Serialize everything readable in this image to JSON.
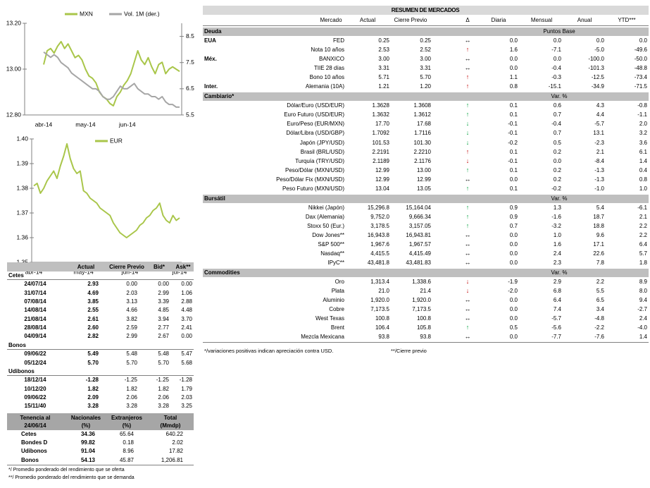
{
  "chart_data": [
    {
      "type": "line",
      "categories": [
        "abr-14",
        null,
        null,
        null,
        null,
        null,
        null,
        null,
        null,
        null,
        null,
        null,
        "may-14",
        null,
        null,
        null,
        null,
        null,
        null,
        null,
        null,
        null,
        null,
        null,
        "jun-14",
        null,
        null,
        null,
        null,
        null,
        null,
        null,
        null,
        null,
        null,
        null,
        null,
        null,
        null,
        null
      ],
      "series": [
        {
          "name": "MXN",
          "color": "#a9c64a",
          "values": [
            13.02,
            13.08,
            13.09,
            13.07,
            13.1,
            13.12,
            13.09,
            13.11,
            13.08,
            13.05,
            13.06,
            13.04,
            13.0,
            12.97,
            12.96,
            12.94,
            12.9,
            12.88,
            12.87,
            12.85,
            12.84,
            12.88,
            12.9,
            12.93,
            12.95,
            12.98,
            13.03,
            13.08,
            13.04,
            13.02,
            13.05,
            13.01,
            12.98,
            13.02,
            13.03,
            12.98,
            13.0,
            13.01,
            13.0,
            12.99
          ]
        },
        {
          "name": "Vol. 1M (der.)",
          "color": "#a6a6a6",
          "axis": "y2",
          "values": [
            7.9,
            7.8,
            7.7,
            7.8,
            7.7,
            7.5,
            7.4,
            7.3,
            7.1,
            7.0,
            6.9,
            6.8,
            6.7,
            6.6,
            6.5,
            6.5,
            6.4,
            6.2,
            6.1,
            6.1,
            6.2,
            6.4,
            6.6,
            6.5,
            6.5,
            6.6,
            6.7,
            6.5,
            6.4,
            6.3,
            6.3,
            6.2,
            6.2,
            6.1,
            6.2,
            6.0,
            5.9,
            5.9,
            5.8,
            5.8
          ]
        }
      ],
      "ylim": [
        12.8,
        13.2
      ],
      "yticks": [
        {
          "value": 12.8,
          "label": "12.80"
        },
        {
          "value": 13,
          "label": "13.00"
        },
        {
          "value": 13.2,
          "label": "13.20"
        }
      ],
      "y2lim": [
        5.5,
        9.0
      ],
      "y2ticks": [
        5.5,
        6.5,
        7.5,
        8.5
      ],
      "legend": "top"
    },
    {
      "type": "line",
      "categories": [
        "abr-14",
        null,
        null,
        null,
        null,
        null,
        null,
        null,
        null,
        null,
        null,
        null,
        null,
        null,
        null,
        "may-14",
        null,
        null,
        null,
        null,
        null,
        null,
        null,
        null,
        null,
        null,
        null,
        null,
        null,
        "jun-14",
        null,
        null,
        null,
        null,
        null,
        null,
        null,
        null,
        null,
        null,
        null,
        null,
        null,
        null,
        "jul-14"
      ],
      "series": [
        {
          "name": "EUR",
          "color": "#a9c64a",
          "values": [
            1.381,
            1.382,
            1.378,
            1.38,
            1.383,
            1.385,
            1.387,
            1.384,
            1.389,
            1.393,
            1.398,
            1.392,
            1.388,
            1.386,
            1.387,
            1.379,
            1.378,
            1.376,
            1.375,
            1.374,
            1.372,
            1.371,
            1.37,
            1.369,
            1.366,
            1.364,
            1.362,
            1.361,
            1.36,
            1.361,
            1.362,
            1.363,
            1.365,
            1.366,
            1.368,
            1.369,
            1.371,
            1.372,
            1.374,
            1.369,
            1.367,
            1.366,
            1.369,
            1.367,
            1.368
          ]
        }
      ],
      "ylim": [
        1.35,
        1.4
      ],
      "yticks": [
        1.35,
        1.36,
        1.37,
        1.38,
        1.39,
        {
          "value": 1.4,
          "label": "1.40"
        }
      ],
      "legend": "top"
    }
  ],
  "rates": {
    "columns": [
      "Actual",
      "Cierre Previo",
      "Bid*",
      "Ask**"
    ],
    "sections": [
      {
        "name": "Cetes",
        "rows": [
          [
            "24/07/14",
            "2.93",
            "0.00",
            "0.00",
            "0.00"
          ],
          [
            "31/07/14",
            "4.69",
            "2.03",
            "2.99",
            "1.06"
          ],
          [
            "07/08/14",
            "3.85",
            "3.13",
            "3.39",
            "2.88"
          ],
          [
            "14/08/14",
            "2.55",
            "4.66",
            "4.85",
            "4.48"
          ],
          [
            "21/08/14",
            "2.61",
            "3.82",
            "3.94",
            "3.70"
          ],
          [
            "28/08/14",
            "2.60",
            "2.59",
            "2.77",
            "2.41"
          ],
          [
            "04/09/14",
            "2.82",
            "2.99",
            "2.67",
            "0.00"
          ]
        ]
      },
      {
        "name": "Bonos",
        "rows": [
          [
            "09/06/22",
            "5.49",
            "5.48",
            "5.48",
            "5.47"
          ],
          [
            "05/12/24",
            "5.70",
            "5.70",
            "5.70",
            "5.68"
          ]
        ]
      },
      {
        "name": "Udibonos",
        "rows": [
          [
            "18/12/14",
            "-1.28",
            "-1.25",
            "-1.25",
            "-1.28"
          ],
          [
            "10/12/20",
            "1.82",
            "1.82",
            "1.82",
            "1.79"
          ],
          [
            "09/06/22",
            "2.09",
            "2.06",
            "2.06",
            "2.03"
          ],
          [
            "15/11/40",
            "3.28",
            "3.28",
            "3.28",
            "3.25"
          ]
        ]
      }
    ],
    "holdings": {
      "columns": [
        [
          "Tenencia al",
          "24/06/14"
        ],
        [
          "Nacionales",
          "(%)"
        ],
        [
          "Extranjeros",
          "(%)"
        ],
        [
          "Total",
          "(Mmdp)"
        ]
      ],
      "rows": [
        [
          "Cetes",
          "34.36",
          "65.64",
          "640.22"
        ],
        [
          "Bondes D",
          "99.82",
          "0.18",
          "2.02"
        ],
        [
          "Udibonos",
          "91.04",
          "8.96",
          "17.82"
        ],
        [
          "Bonos",
          "54.13",
          "45.87",
          "1,206.81"
        ]
      ]
    },
    "notes": [
      "*/ Promedio ponderado del rendimiento que se oferta",
      "**/ Promedio ponderado del rendimiento que se demanda"
    ]
  },
  "summary": {
    "title": "RESUMEN DE MERCADOS",
    "columns": [
      "Mercado",
      "Actual",
      "Cierre Previo",
      "Δ",
      "Diaria",
      "Mensual",
      "Anual",
      "YTD***"
    ],
    "sections": [
      {
        "name": "Deuda",
        "unit": "Puntos Base",
        "rows": [
          {
            "group": "EUA",
            "name": "FED",
            "values": [
              "0.25",
              "0.25"
            ],
            "arrow": "↔",
            "arrow_color": "#000000",
            "changes": [
              "0.0",
              "0.0",
              "0.0",
              "0.0"
            ]
          },
          {
            "name": "Nota 10 años",
            "values": [
              "2.53",
              "2.52"
            ],
            "arrow": "↑",
            "arrow_color": "#c00000",
            "changes": [
              "1.6",
              "-7.1",
              "-5.0",
              "-49.6"
            ]
          },
          {
            "group": "Méx.",
            "name": "BANXICO",
            "values": [
              "3.00",
              "3.00"
            ],
            "arrow": "↔",
            "arrow_color": "#000000",
            "changes": [
              "0.0",
              "0.0",
              "-100.0",
              "-50.0"
            ]
          },
          {
            "name": "TIIE 28 días",
            "values": [
              "3.31",
              "3.31"
            ],
            "arrow": "↔",
            "arrow_color": "#000000",
            "changes": [
              "0.0",
              "-0.4",
              "-101.3",
              "-48.8"
            ]
          },
          {
            "name": "Bono 10 años",
            "values": [
              "5.71",
              "5.70"
            ],
            "arrow": "↑",
            "arrow_color": "#c00000",
            "changes": [
              "1.1",
              "-0.3",
              "-12.5",
              "-73.4"
            ]
          },
          {
            "group": "Inter.",
            "name": "Alemania (10A)",
            "values": [
              "1.21",
              "1.20"
            ],
            "arrow": "↑",
            "arrow_color": "#c00000",
            "changes": [
              "0.8",
              "-15.1",
              "-34.9",
              "-71.5"
            ]
          }
        ]
      },
      {
        "name": "Cambiario*",
        "unit": "Var. %",
        "rows": [
          {
            "name": "Dólar/Euro (USD/EUR)",
            "values": [
              "1.3628",
              "1.3608"
            ],
            "arrow": "↑",
            "arrow_color": "#00a03c",
            "changes": [
              "0.1",
              "0.6",
              "4.3",
              "-0.8"
            ]
          },
          {
            "name": "Euro Futuro (USD/EUR)",
            "values": [
              "1.3632",
              "1.3612"
            ],
            "arrow": "↑",
            "arrow_color": "#00a03c",
            "changes": [
              "0.1",
              "0.7",
              "4.4",
              "-1.1"
            ]
          },
          {
            "name": "Euro/Peso (EUR/MXN)",
            "values": [
              "17.70",
              "17.68"
            ],
            "arrow": "↓",
            "arrow_color": "#00a03c",
            "changes": [
              "-0.1",
              "-0.4",
              "-5.7",
              "2.0"
            ]
          },
          {
            "name": "Dólar/Libra (USD/GBP)",
            "values": [
              "1.7092",
              "1.7116"
            ],
            "arrow": "↓",
            "arrow_color": "#00a03c",
            "changes": [
              "-0.1",
              "0.7",
              "13.1",
              "3.2"
            ]
          },
          {
            "name": "Japón (JPY/USD)",
            "values": [
              "101.53",
              "101.30"
            ],
            "arrow": "↓",
            "arrow_color": "#00a03c",
            "changes": [
              "-0.2",
              "0.5",
              "-2.3",
              "3.6"
            ]
          },
          {
            "name": "Brasil (BRL/USD)",
            "values": [
              "2.2191",
              "2.2210"
            ],
            "arrow": "↑",
            "arrow_color": "#c00000",
            "changes": [
              "0.1",
              "0.2",
              "2.1",
              "6.1"
            ]
          },
          {
            "name": "Turquía (TRY/USD)",
            "values": [
              "2.1189",
              "2.1176"
            ],
            "arrow": "↓",
            "arrow_color": "#c00000",
            "changes": [
              "-0.1",
              "0.0",
              "-8.4",
              "1.4"
            ]
          },
          {
            "name": "Peso/Dólar (MXN/USD)",
            "values": [
              "12.99",
              "13.00"
            ],
            "arrow": "↑",
            "arrow_color": "#00a03c",
            "changes": [
              "0.1",
              "0.2",
              "-1.3",
              "0.4"
            ]
          },
          {
            "name": "Peso/Dólar Fix (MXN/USD)",
            "values": [
              "12.99",
              "12.99"
            ],
            "arrow": "↔",
            "arrow_color": "#000000",
            "changes": [
              "0.0",
              "0.2",
              "-1.3",
              "0.8"
            ]
          },
          {
            "name": "Peso Futuro (MXN/USD)",
            "values": [
              "13.04",
              "13.05"
            ],
            "arrow": "↑",
            "arrow_color": "#00a03c",
            "changes": [
              "0.1",
              "-0.2",
              "-1.0",
              "1.0"
            ]
          }
        ]
      },
      {
        "name": "Bursátil",
        "unit": "Var. %",
        "rows": [
          {
            "name": "Nikkei (Japón)",
            "values": [
              "15,296.8",
              "15,164.04"
            ],
            "arrow": "↑",
            "arrow_color": "#00a03c",
            "changes": [
              "0.9",
              "1.3",
              "5.4",
              "-6.1"
            ]
          },
          {
            "name": "Dax (Alemania)",
            "values": [
              "9,752.0",
              "9,666.34"
            ],
            "arrow": "↑",
            "arrow_color": "#00a03c",
            "changes": [
              "0.9",
              "-1.6",
              "18.7",
              "2.1"
            ]
          },
          {
            "name": "Stoxx 50 (Eur.)",
            "values": [
              "3,178.5",
              "3,157.05"
            ],
            "arrow": "↑",
            "arrow_color": "#00a03c",
            "changes": [
              "0.7",
              "-3.2",
              "18.8",
              "2.2"
            ]
          },
          {
            "name": "Dow Jones**",
            "values": [
              "16,943.8",
              "16,943.81"
            ],
            "arrow": "↔",
            "arrow_color": "#000000",
            "changes": [
              "0.0",
              "1.0",
              "9.6",
              "2.2"
            ]
          },
          {
            "name": "S&P 500**",
            "values": [
              "1,967.6",
              "1,967.57"
            ],
            "arrow": "↔",
            "arrow_color": "#000000",
            "changes": [
              "0.0",
              "1.6",
              "17.1",
              "6.4"
            ]
          },
          {
            "name": "Nasdaq**",
            "values": [
              "4,415.5",
              "4,415.49"
            ],
            "arrow": "↔",
            "arrow_color": "#000000",
            "changes": [
              "0.0",
              "2.4",
              "22.6",
              "5.7"
            ]
          },
          {
            "name": "IPyC**",
            "values": [
              "43,481.8",
              "43,481.83"
            ],
            "arrow": "↔",
            "arrow_color": "#000000",
            "changes": [
              "0.0",
              "2.3",
              "7.8",
              "1.8"
            ]
          }
        ]
      },
      {
        "name": "Commodities",
        "unit": "Var. %",
        "rows": [
          {
            "name": "Oro",
            "values": [
              "1,313.4",
              "1,338.6"
            ],
            "arrow": "↓",
            "arrow_color": "#c00000",
            "changes": [
              "-1.9",
              "2.9",
              "2.2",
              "8.9"
            ]
          },
          {
            "name": "Plata",
            "values": [
              "21.0",
              "21.4"
            ],
            "arrow": "↓",
            "arrow_color": "#c00000",
            "changes": [
              "-2.0",
              "6.8",
              "5.5",
              "8.0"
            ]
          },
          {
            "name": "Aluminio",
            "values": [
              "1,920.0",
              "1,920.0"
            ],
            "arrow": "↔",
            "arrow_color": "#000000",
            "changes": [
              "0.0",
              "6.4",
              "6.5",
              "9.4"
            ]
          },
          {
            "name": "Cobre",
            "values": [
              "7,173.5",
              "7,173.5"
            ],
            "arrow": "↔",
            "arrow_color": "#000000",
            "changes": [
              "0.0",
              "7.4",
              "3.4",
              "-2.7"
            ]
          },
          {
            "name": "West Texas",
            "values": [
              "100.8",
              "100.8"
            ],
            "arrow": "↔",
            "arrow_color": "#000000",
            "changes": [
              "0.0",
              "-5.7",
              "-4.8",
              "2.4"
            ]
          },
          {
            "name": "Brent",
            "values": [
              "106.4",
              "105.8"
            ],
            "arrow": "↑",
            "arrow_color": "#00a03c",
            "changes": [
              "0.5",
              "-5.6",
              "-2.2",
              "-4.0"
            ]
          },
          {
            "name": "Mezcla Mexicana",
            "values": [
              "93.8",
              "93.8"
            ],
            "arrow": "↔",
            "arrow_color": "#000000",
            "changes": [
              "0.0",
              "-7.7",
              "-7.6",
              "1.4"
            ]
          }
        ]
      }
    ],
    "notes": [
      "*/variaciones positivas indican apreciación contra USD.",
      "**/Cierre previo"
    ]
  }
}
